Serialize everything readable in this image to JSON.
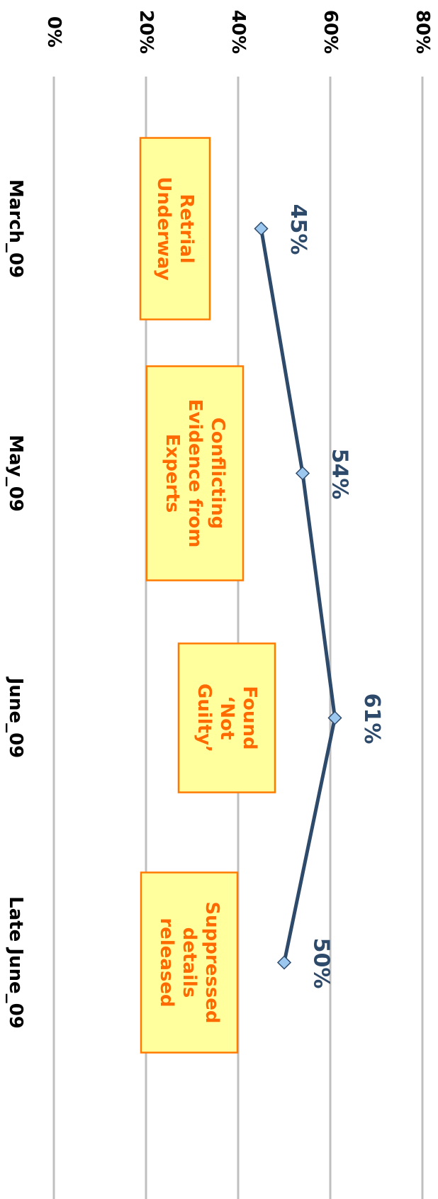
{
  "chart_data": {
    "type": "line",
    "title": "",
    "xlabel": "",
    "ylabel": "",
    "categories": [
      "March_09",
      "May_09",
      "June_09",
      "Late June_09"
    ],
    "series": [
      {
        "values": [
          45,
          54,
          61,
          50
        ],
        "labels": [
          "45%",
          "54%",
          "61%",
          "50%"
        ]
      }
    ],
    "ylim": [
      0,
      80
    ],
    "yticks": [
      0,
      20,
      40,
      60,
      80
    ],
    "ytick_labels": [
      "0%",
      "20%",
      "40%",
      "60%",
      "80%"
    ],
    "grid": true,
    "legend": "none",
    "annotations": [
      {
        "category": "March_09",
        "lines": [
          "Retrial",
          "Underway"
        ]
      },
      {
        "category": "May_09",
        "lines": [
          "Conflicting",
          "Evidence from",
          "Experts"
        ]
      },
      {
        "category": "June_09",
        "lines": [
          "Found",
          "‘Not",
          "Guilty’"
        ]
      },
      {
        "category": "Late June_09",
        "lines": [
          "Suppressed",
          "details",
          "released"
        ]
      }
    ],
    "colors": {
      "line": "#2e4a6b",
      "marker_fill": "#9cc8f0",
      "marker_stroke": "#2e4a6b",
      "data_label": "#2e4a6b",
      "grid": "#bfbfbf",
      "annotation_fill": "#ffff9e",
      "annotation_stroke": "#ff7a00",
      "annotation_text": "#ff6a00"
    }
  }
}
